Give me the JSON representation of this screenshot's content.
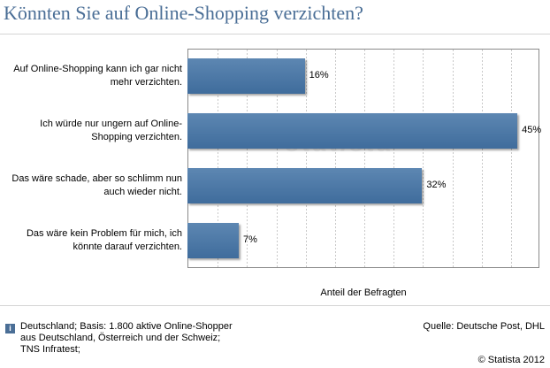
{
  "chart_data": {
    "type": "bar",
    "orientation": "horizontal",
    "title": "Könnten Sie auf Online-Shopping verzichten?",
    "categories": [
      "Auf Online-Shopping kann ich gar nicht mehr verzichten.",
      "Ich würde nur ungern auf Online-Shopping verzichten.",
      "Das wäre schade, aber so schlimm nun auch wieder nicht.",
      "Das wäre kein Problem für mich, ich könnte darauf verzichten."
    ],
    "values": [
      16,
      45,
      32,
      7
    ],
    "value_labels": [
      "16%",
      "45%",
      "32%",
      "7%"
    ],
    "xlabel": "Anteil der Befragten",
    "xlim": [
      0,
      48
    ],
    "grid": "vertical dashed",
    "bar_color": "#4a76a3"
  },
  "category_lines": [
    [
      "Auf Online-Shopping kann ich gar nicht",
      "mehr verzichten."
    ],
    [
      "Ich würde nur ungern auf Online-",
      "Shopping verzichten."
    ],
    [
      "Das wäre schade, aber so schlimm nun",
      "auch wieder nicht."
    ],
    [
      "Das wäre kein Problem für mich, ich",
      "könnte darauf verzichten."
    ]
  ],
  "watermark": "statista",
  "footer": {
    "info_icon": "info-icon",
    "basis_lines": [
      "Deutschland; Basis: 1.800 aktive Online-Shopper",
      "aus Deutschland, Österreich und der Schweiz;",
      "TNS Infratest;"
    ],
    "source": "Quelle: Deutsche Post, DHL",
    "copyright": "© Statista 2012"
  }
}
